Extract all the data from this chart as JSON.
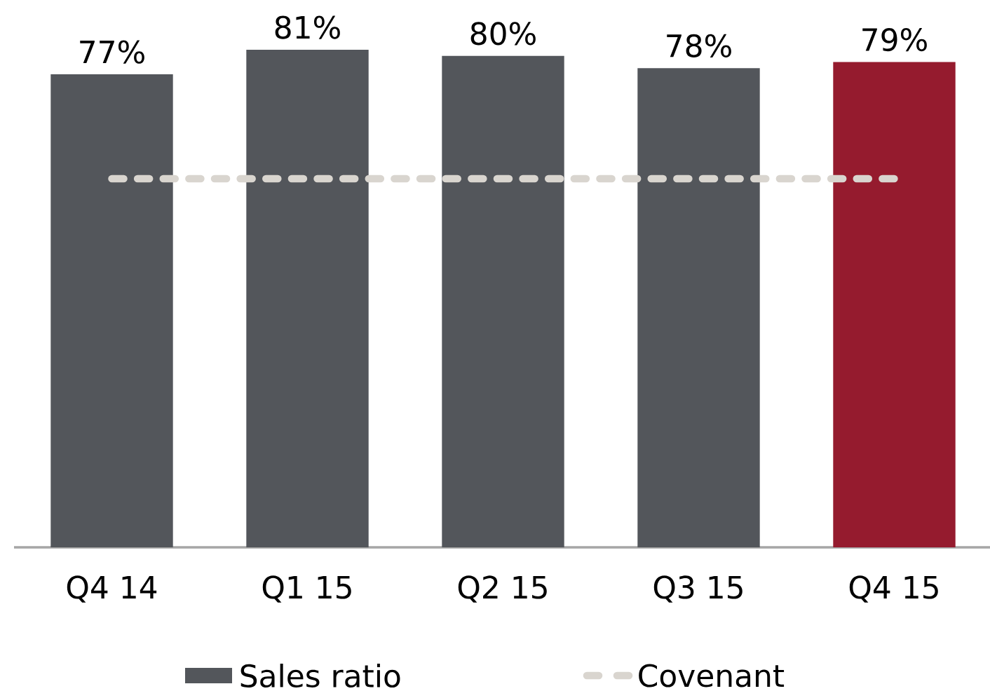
{
  "chart_data": {
    "type": "bar",
    "categories": [
      "Q4 14",
      "Q1 15",
      "Q2 15",
      "Q3 15",
      "Q4 15"
    ],
    "series": [
      {
        "name": "Sales ratio",
        "color": "#53565b",
        "colors": [
          "#53565b",
          "#53565b",
          "#53565b",
          "#53565b",
          "#951b2e"
        ],
        "values": [
          77,
          81,
          80,
          78,
          79
        ],
        "value_labels": [
          "77%",
          "81%",
          "80%",
          "78%",
          "79%"
        ]
      },
      {
        "name": "Covenant",
        "type": "line",
        "color": "#d9d5cf",
        "line_style": "dashed",
        "values": [
          60,
          60,
          60,
          60,
          60
        ]
      }
    ],
    "legend": "bottom",
    "marker": "none"
  }
}
